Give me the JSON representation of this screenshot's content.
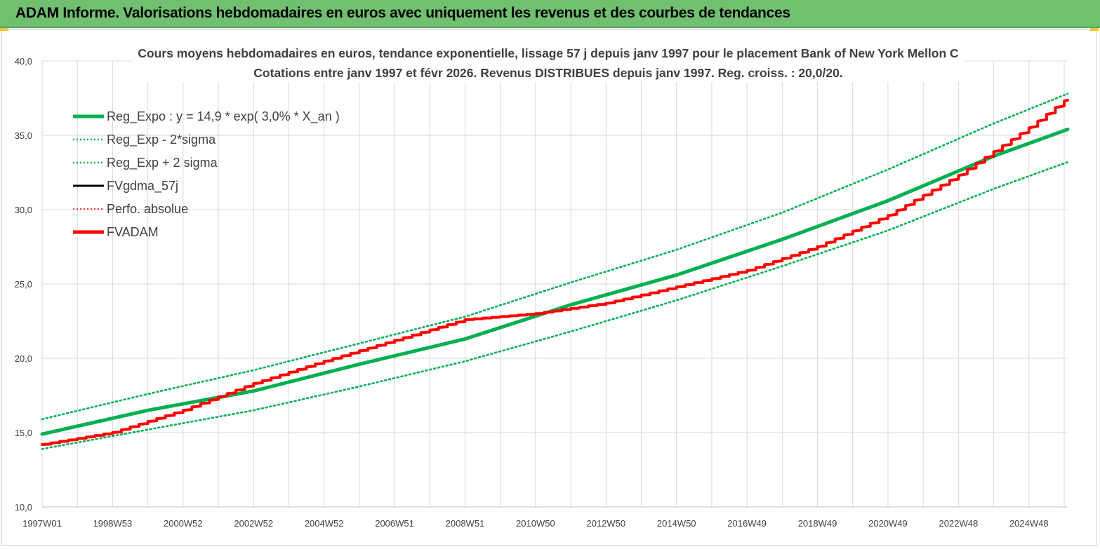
{
  "header": {
    "title": "ADAM Informe. Valorisations hebdomadaires en euros avec uniquement les revenus et des courbes de tendances"
  },
  "chart_data": {
    "type": "line",
    "title": "Cours moyens hebdomadaires en euros, tendance exponentielle, lissage 57 j depuis janv 1997  pour le placement Bank of New York Mellon C",
    "subtitle": "Cotations entre janv 1997 et févr 2026. Revenus DISTRIBUES depuis janv 1997. Reg. croiss. : 20,0/20.",
    "xlabel": "",
    "ylabel": "",
    "x_range": [
      1997.0,
      2026.1
    ],
    "ylim": [
      10,
      40
    ],
    "y_ticks": [
      "10,0",
      "15,0",
      "20,0",
      "25,0",
      "30,0",
      "35,0",
      "40,0"
    ],
    "x_ticks": [
      {
        "label": "1997W01",
        "x": 1997.0
      },
      {
        "label": "1998W53",
        "x": 1999.0
      },
      {
        "label": "2000W52",
        "x": 2001.0
      },
      {
        "label": "2002W52",
        "x": 2003.0
      },
      {
        "label": "2004W52",
        "x": 2005.0
      },
      {
        "label": "2006W51",
        "x": 2007.0
      },
      {
        "label": "2008W51",
        "x": 2009.0
      },
      {
        "label": "2010W50",
        "x": 2011.0
      },
      {
        "label": "2012W50",
        "x": 2013.0
      },
      {
        "label": "2014W50",
        "x": 2015.0
      },
      {
        "label": "2016W49",
        "x": 2017.0
      },
      {
        "label": "2018W49",
        "x": 2019.0
      },
      {
        "label": "2020W49",
        "x": 2021.0
      },
      {
        "label": "2022W48",
        "x": 2023.0
      },
      {
        "label": "2024W48",
        "x": 2025.0
      }
    ],
    "grid": true,
    "legend_position": "top-left",
    "series": [
      {
        "name": "Reg_Expo : y = 14,9 * exp( 3,0% *  X_an )",
        "color": "#00b050",
        "style": "solid-thick",
        "x": [
          1997.0,
          2000.0,
          2003.0,
          2006.0,
          2009.0,
          2012.0,
          2015.0,
          2018.0,
          2021.0,
          2024.0,
          2026.1
        ],
        "values": [
          14.9,
          16.5,
          17.8,
          19.6,
          21.3,
          23.6,
          25.6,
          28.0,
          30.6,
          33.6,
          35.4
        ]
      },
      {
        "name": "Reg_Exp - 2*sigma",
        "color": "#00b050",
        "style": "dotted",
        "x": [
          1997.0,
          2000.0,
          2003.0,
          2006.0,
          2009.0,
          2012.0,
          2015.0,
          2018.0,
          2021.0,
          2024.0,
          2026.1
        ],
        "values": [
          13.9,
          15.2,
          16.5,
          18.1,
          19.8,
          21.8,
          23.9,
          26.2,
          28.6,
          31.4,
          33.2
        ]
      },
      {
        "name": "Reg_Exp + 2 sigma",
        "color": "#00b050",
        "style": "dotted",
        "x": [
          1997.0,
          2000.0,
          2003.0,
          2006.0,
          2009.0,
          2012.0,
          2015.0,
          2018.0,
          2021.0,
          2024.0,
          2026.1
        ],
        "values": [
          15.9,
          17.6,
          19.2,
          21.0,
          22.8,
          25.1,
          27.3,
          29.8,
          32.7,
          35.8,
          37.8
        ]
      },
      {
        "name": "FVgdma_57j",
        "color": "#000000",
        "style": "solid",
        "x": [
          1997.0,
          1999.0,
          2001.0,
          2003.0,
          2005.0,
          2007.0,
          2009.0,
          2011.0,
          2013.0,
          2015.0,
          2017.0,
          2019.0,
          2021.0,
          2023.0,
          2025.0,
          2026.1
        ],
        "values": [
          14.2,
          15.0,
          16.5,
          18.3,
          19.8,
          21.2,
          22.6,
          23.0,
          23.7,
          24.8,
          25.9,
          27.5,
          29.6,
          32.3,
          35.5,
          37.5
        ]
      },
      {
        "name": "Perfo. absolue",
        "color": "#ff0000",
        "style": "dotted",
        "x": [
          1997.0,
          1999.0,
          2001.0,
          2003.0,
          2005.0,
          2007.0,
          2009.0,
          2011.0,
          2013.0,
          2015.0,
          2017.0,
          2019.0,
          2021.0,
          2023.0,
          2025.0,
          2026.1
        ],
        "values": [
          14.2,
          15.0,
          16.5,
          18.3,
          19.8,
          21.2,
          22.6,
          23.0,
          23.7,
          24.8,
          25.9,
          27.5,
          29.6,
          32.3,
          35.5,
          37.5
        ]
      },
      {
        "name": "FVADAM",
        "color": "#ff0000",
        "style": "solid-thick",
        "x": [
          1997.0,
          1999.0,
          2001.0,
          2003.0,
          2005.0,
          2007.0,
          2009.0,
          2011.0,
          2013.0,
          2015.0,
          2017.0,
          2019.0,
          2021.0,
          2023.0,
          2025.0,
          2026.1
        ],
        "values": [
          14.2,
          15.0,
          16.5,
          18.3,
          19.8,
          21.2,
          22.6,
          23.0,
          23.7,
          24.8,
          25.9,
          27.5,
          29.6,
          32.3,
          35.5,
          37.5
        ]
      }
    ]
  }
}
